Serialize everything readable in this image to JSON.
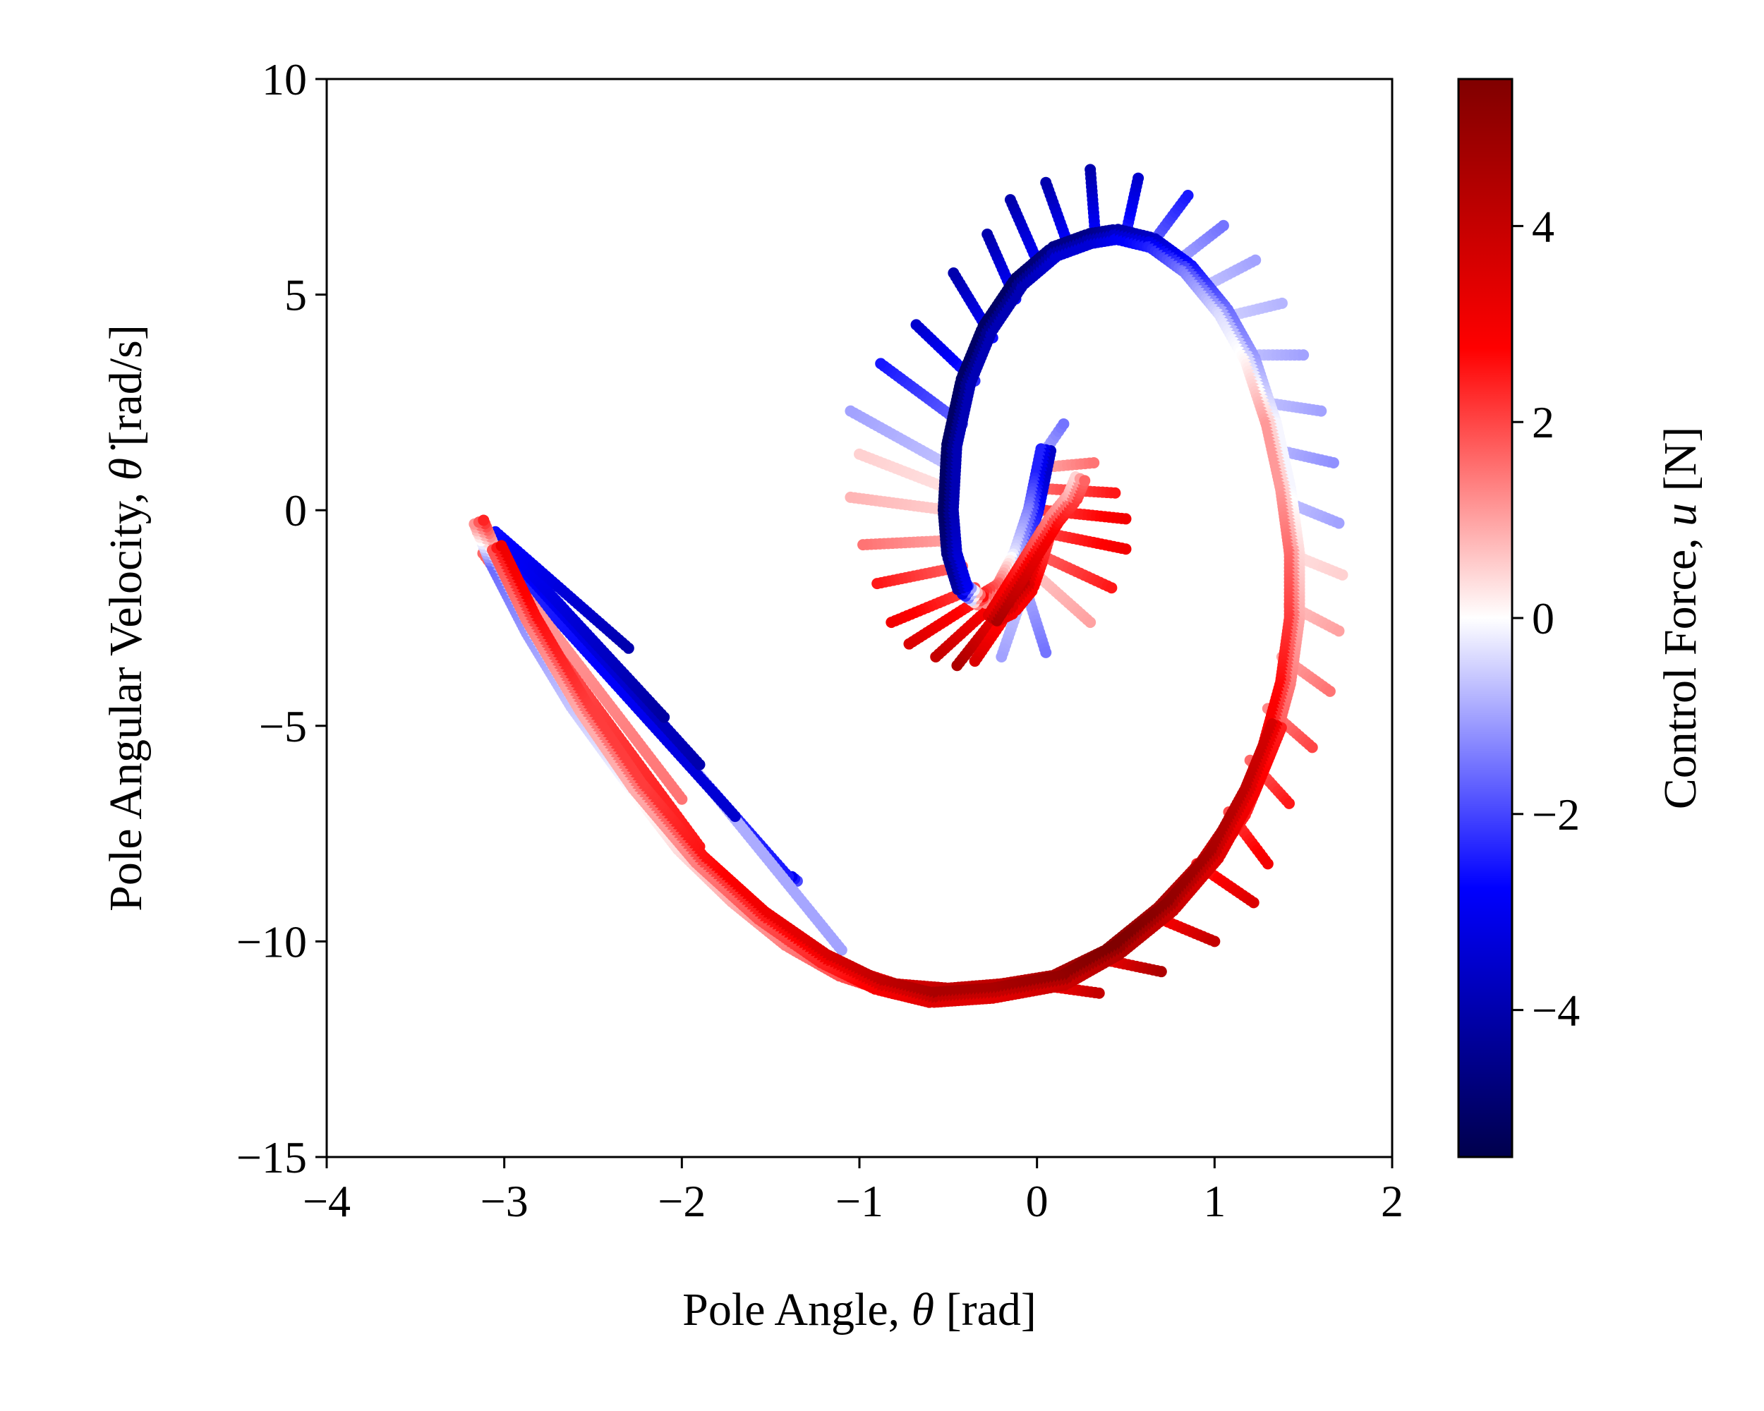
{
  "chart_data": {
    "type": "scatter",
    "xlabel": {
      "prefix": "Pole Angle, ",
      "symbol": "θ",
      "suffix": " [rad]"
    },
    "ylabel": {
      "prefix": "Pole Angular Velocity, ",
      "symbol": "θ",
      "symbol_dot": "̇",
      "suffix": " [rad/s]"
    },
    "colorbar_label": {
      "prefix": "Control Force, ",
      "symbol": "u",
      "suffix": " [N]"
    },
    "xlim": [
      -4,
      2
    ],
    "ylim": [
      -15,
      10
    ],
    "xticks": [
      -4,
      -3,
      -2,
      -1,
      0,
      1,
      2
    ],
    "xtick_labels": [
      "−4",
      "−3",
      "−2",
      "−1",
      "0",
      "1",
      "2"
    ],
    "yticks": [
      -15,
      -10,
      -5,
      0,
      5,
      10
    ],
    "ytick_labels": [
      "−15",
      "−10",
      "−5",
      "0",
      "5",
      "10"
    ],
    "colorbar_range": [
      -5.5,
      5.5
    ],
    "colorbar_ticks": [
      -4,
      -2,
      0,
      2,
      4
    ],
    "colorbar_tick_labels": [
      "−4",
      "−2",
      "0",
      "2",
      "4"
    ],
    "colormap": "seismic",
    "colormap_stops": [
      "#00004c",
      "#0000ff",
      "#ffffff",
      "#ff0000",
      "#800000"
    ],
    "grid": false,
    "series": [
      {
        "role": "main_trajectory",
        "points": [
          [
            0.05,
            1.4,
            -3.0
          ],
          [
            0.02,
            0.8,
            -3.0
          ],
          [
            -0.02,
            0.0,
            -2.0
          ],
          [
            -0.1,
            -1.0,
            -1.0
          ],
          [
            -0.2,
            -1.8,
            1.0
          ],
          [
            -0.32,
            -2.1,
            2.0
          ],
          [
            -0.42,
            -1.8,
            -3.5
          ],
          [
            -0.48,
            -1.0,
            -4.0
          ],
          [
            -0.5,
            0.0,
            -4.5
          ],
          [
            -0.48,
            1.5,
            -4.5
          ],
          [
            -0.4,
            3.0,
            -4.5
          ],
          [
            -0.28,
            4.2,
            -4.5
          ],
          [
            -0.1,
            5.3,
            -4.5
          ],
          [
            0.1,
            6.0,
            -4.0
          ],
          [
            0.3,
            6.3,
            -4.0
          ],
          [
            0.45,
            6.4,
            -3.5
          ],
          [
            0.65,
            6.2,
            -3.0
          ],
          [
            0.85,
            5.6,
            -2.0
          ],
          [
            1.05,
            4.6,
            -1.0
          ],
          [
            1.2,
            3.5,
            -0.5
          ],
          [
            1.32,
            2.0,
            0.5
          ],
          [
            1.4,
            0.5,
            0.5
          ],
          [
            1.45,
            -1.0,
            1.0
          ],
          [
            1.45,
            -2.5,
            1.5
          ],
          [
            1.4,
            -4.0,
            2.0
          ],
          [
            1.3,
            -5.5,
            2.5
          ],
          [
            1.15,
            -7.0,
            3.0
          ],
          [
            0.95,
            -8.2,
            3.5
          ],
          [
            0.7,
            -9.3,
            4.0
          ],
          [
            0.4,
            -10.3,
            4.5
          ],
          [
            0.1,
            -10.9,
            4.0
          ],
          [
            -0.2,
            -11.1,
            3.5
          ],
          [
            -0.5,
            -11.2,
            3.5
          ],
          [
            -0.8,
            -11.1,
            3.0
          ],
          [
            -1.1,
            -10.7,
            2.5
          ],
          [
            -1.4,
            -10.0,
            2.0
          ],
          [
            -1.7,
            -9.0,
            1.5
          ],
          [
            -2.0,
            -7.8,
            1.0
          ],
          [
            -2.3,
            -6.2,
            0.5
          ],
          [
            -2.6,
            -4.5,
            0.0
          ],
          [
            -2.85,
            -2.8,
            -0.5
          ],
          [
            -3.05,
            -1.2,
            -1.0
          ],
          [
            -3.15,
            -0.2,
            2.0
          ]
        ]
      },
      {
        "role": "outer_loop_red_band",
        "points": [
          [
            1.35,
            -5.0,
            3.0
          ],
          [
            1.2,
            -6.5,
            3.5
          ],
          [
            1.0,
            -8.0,
            4.0
          ],
          [
            0.75,
            -9.2,
            4.5
          ],
          [
            0.45,
            -10.2,
            5.0
          ],
          [
            0.15,
            -10.9,
            4.5
          ],
          [
            -0.25,
            -11.2,
            4.0
          ],
          [
            -0.6,
            -11.3,
            4.0
          ],
          [
            -0.9,
            -11.0,
            3.5
          ],
          [
            -1.2,
            -10.4,
            3.0
          ],
          [
            -1.55,
            -9.4,
            2.5
          ],
          [
            -1.9,
            -8.1,
            2.0
          ],
          [
            -2.25,
            -6.4,
            1.5
          ],
          [
            -2.55,
            -4.6,
            1.5
          ],
          [
            -2.85,
            -2.5,
            2.0
          ],
          [
            -3.05,
            -0.8,
            2.5
          ]
        ]
      },
      {
        "role": "inner_red_fan",
        "points": [
          [
            0.05,
            -0.5,
            2.5
          ],
          [
            0.0,
            -1.2,
            3.0
          ],
          [
            -0.05,
            -1.8,
            3.5
          ],
          [
            -0.15,
            -2.3,
            3.5
          ],
          [
            -0.25,
            -2.5,
            4.0
          ],
          [
            0.1,
            -0.2,
            2.0
          ],
          [
            0.2,
            0.3,
            1.5
          ],
          [
            0.25,
            0.8,
            1.0
          ]
        ]
      }
    ],
    "rays": [
      {
        "from": [
          -0.5,
          0.5
        ],
        "to": [
          -1.0,
          1.3
        ],
        "u": 0.5
      },
      {
        "from": [
          -0.5,
          0.0
        ],
        "to": [
          -1.05,
          0.3
        ],
        "u": 0.8
      },
      {
        "from": [
          -0.48,
          -0.7
        ],
        "to": [
          -0.98,
          -0.8
        ],
        "u": 1.5
      },
      {
        "from": [
          -0.42,
          -1.3
        ],
        "to": [
          -0.9,
          -1.7
        ],
        "u": 2.5
      },
      {
        "from": [
          -0.35,
          -1.8
        ],
        "to": [
          -0.82,
          -2.6
        ],
        "u": 3.0
      },
      {
        "from": [
          -0.3,
          -2.0
        ],
        "to": [
          -0.72,
          -3.1
        ],
        "u": 3.5
      },
      {
        "from": [
          -0.25,
          -2.2
        ],
        "to": [
          -0.57,
          -3.4
        ],
        "u": 4.0
      },
      {
        "from": [
          -0.2,
          -2.3
        ],
        "to": [
          -0.45,
          -3.6
        ],
        "u": 4.5
      },
      {
        "from": [
          -0.15,
          -2.3
        ],
        "to": [
          -0.35,
          -3.5
        ],
        "u": 3.5
      },
      {
        "from": [
          -0.1,
          -2.2
        ],
        "to": [
          -0.2,
          -3.4
        ],
        "u": -1.0
      },
      {
        "from": [
          -0.05,
          -2.0
        ],
        "to": [
          0.05,
          -3.3
        ],
        "u": -1.5
      },
      {
        "from": [
          0.0,
          -1.5
        ],
        "to": [
          0.3,
          -2.6
        ],
        "u": 1.0
      },
      {
        "from": [
          0.0,
          -1.0
        ],
        "to": [
          0.42,
          -1.8
        ],
        "u": 2.5
      },
      {
        "from": [
          0.02,
          -0.5
        ],
        "to": [
          0.5,
          -0.9
        ],
        "u": 3.0
      },
      {
        "from": [
          0.03,
          0.0
        ],
        "to": [
          0.5,
          -0.2
        ],
        "u": 3.0
      },
      {
        "from": [
          0.04,
          0.5
        ],
        "to": [
          0.44,
          0.4
        ],
        "u": 2.5
      },
      {
        "from": [
          0.05,
          1.0
        ],
        "to": [
          0.32,
          1.1
        ],
        "u": 1.5
      },
      {
        "from": [
          0.05,
          1.4
        ],
        "to": [
          0.15,
          2.0
        ],
        "u": -1.5
      },
      {
        "from": [
          -0.48,
          1.0
        ],
        "to": [
          -1.05,
          2.3
        ],
        "u": -1.0
      },
      {
        "from": [
          -0.42,
          2.0
        ],
        "to": [
          -0.88,
          3.4
        ],
        "u": -2.5
      },
      {
        "from": [
          -0.35,
          3.0
        ],
        "to": [
          -0.68,
          4.3
        ],
        "u": -3.5
      },
      {
        "from": [
          -0.25,
          4.0
        ],
        "to": [
          -0.47,
          5.5
        ],
        "u": -4.0
      },
      {
        "from": [
          -0.12,
          4.9
        ],
        "to": [
          -0.28,
          6.4
        ],
        "u": -4.0
      },
      {
        "from": [
          0.02,
          5.6
        ],
        "to": [
          -0.15,
          7.2
        ],
        "u": -4.0
      },
      {
        "from": [
          0.18,
          6.1
        ],
        "to": [
          0.05,
          7.6
        ],
        "u": -4.0
      },
      {
        "from": [
          0.33,
          6.3
        ],
        "to": [
          0.3,
          7.9
        ],
        "u": -4.0
      },
      {
        "from": [
          0.5,
          6.4
        ],
        "to": [
          0.57,
          7.7
        ],
        "u": -3.5
      },
      {
        "from": [
          0.65,
          6.2
        ],
        "to": [
          0.85,
          7.3
        ],
        "u": -2.5
      },
      {
        "from": [
          0.8,
          5.8
        ],
        "to": [
          1.05,
          6.6
        ],
        "u": -1.5
      },
      {
        "from": [
          0.95,
          5.2
        ],
        "to": [
          1.23,
          5.8
        ],
        "u": -1.0
      },
      {
        "from": [
          1.08,
          4.5
        ],
        "to": [
          1.38,
          4.8
        ],
        "u": -0.8
      },
      {
        "from": [
          1.18,
          3.6
        ],
        "to": [
          1.5,
          3.6
        ],
        "u": -1.0
      },
      {
        "from": [
          1.28,
          2.5
        ],
        "to": [
          1.6,
          2.3
        ],
        "u": -1.0
      },
      {
        "from": [
          1.35,
          1.4
        ],
        "to": [
          1.67,
          1.1
        ],
        "u": -1.2
      },
      {
        "from": [
          1.4,
          0.2
        ],
        "to": [
          1.7,
          -0.3
        ],
        "u": -1.0
      },
      {
        "from": [
          1.42,
          -1.0
        ],
        "to": [
          1.72,
          -1.5
        ],
        "u": 0.5
      },
      {
        "from": [
          1.42,
          -2.2
        ],
        "to": [
          1.7,
          -2.8
        ],
        "u": 1.0
      },
      {
        "from": [
          1.38,
          -3.4
        ],
        "to": [
          1.65,
          -4.2
        ],
        "u": 1.5
      },
      {
        "from": [
          1.3,
          -4.6
        ],
        "to": [
          1.55,
          -5.5
        ],
        "u": 2.0
      },
      {
        "from": [
          1.2,
          -5.8
        ],
        "to": [
          1.42,
          -6.8
        ],
        "u": 2.5
      },
      {
        "from": [
          1.08,
          -7.0
        ],
        "to": [
          1.3,
          -8.2
        ],
        "u": 3.0
      },
      {
        "from": [
          0.9,
          -8.2
        ],
        "to": [
          1.22,
          -9.1
        ],
        "u": 3.5
      },
      {
        "from": [
          0.65,
          -9.4
        ],
        "to": [
          1.0,
          -10.0
        ],
        "u": 4.0
      },
      {
        "from": [
          0.35,
          -10.4
        ],
        "to": [
          0.7,
          -10.7
        ],
        "u": 4.5
      },
      {
        "from": [
          0.0,
          -11.0
        ],
        "to": [
          0.35,
          -11.2
        ],
        "u": 4.0
      },
      {
        "from": [
          -1.35,
          -8.6
        ],
        "to": [
          -1.38,
          -8.5
        ],
        "u": -3.0
      },
      {
        "from": [
          -2.9,
          -1.5
        ],
        "to": [
          -1.4,
          -8.5
        ],
        "u": -2.5
      },
      {
        "from": [
          -2.8,
          -1.6
        ],
        "to": [
          -1.1,
          -10.2
        ],
        "u": -1.0
      },
      {
        "from": [
          -2.95,
          -1.4
        ],
        "to": [
          -1.7,
          -7.1
        ],
        "u": -3.5
      },
      {
        "from": [
          -2.98,
          -1.0
        ],
        "to": [
          -1.9,
          -5.9
        ],
        "u": -4.0
      },
      {
        "from": [
          -3.0,
          -0.8
        ],
        "to": [
          -2.1,
          -4.8
        ],
        "u": -4.2
      },
      {
        "from": [
          -3.05,
          -0.5
        ],
        "to": [
          -2.3,
          -3.2
        ],
        "u": -4.0
      },
      {
        "from": [
          -3.1,
          -0.8
        ],
        "to": [
          -2.0,
          -6.7
        ],
        "u": 1.5
      },
      {
        "from": [
          -3.12,
          -1.0
        ],
        "to": [
          -1.9,
          -7.8
        ],
        "u": 2.5
      },
      {
        "from": [
          -3.15,
          -0.5
        ],
        "to": [
          -2.55,
          -4.4
        ],
        "u": 3.5
      }
    ]
  }
}
